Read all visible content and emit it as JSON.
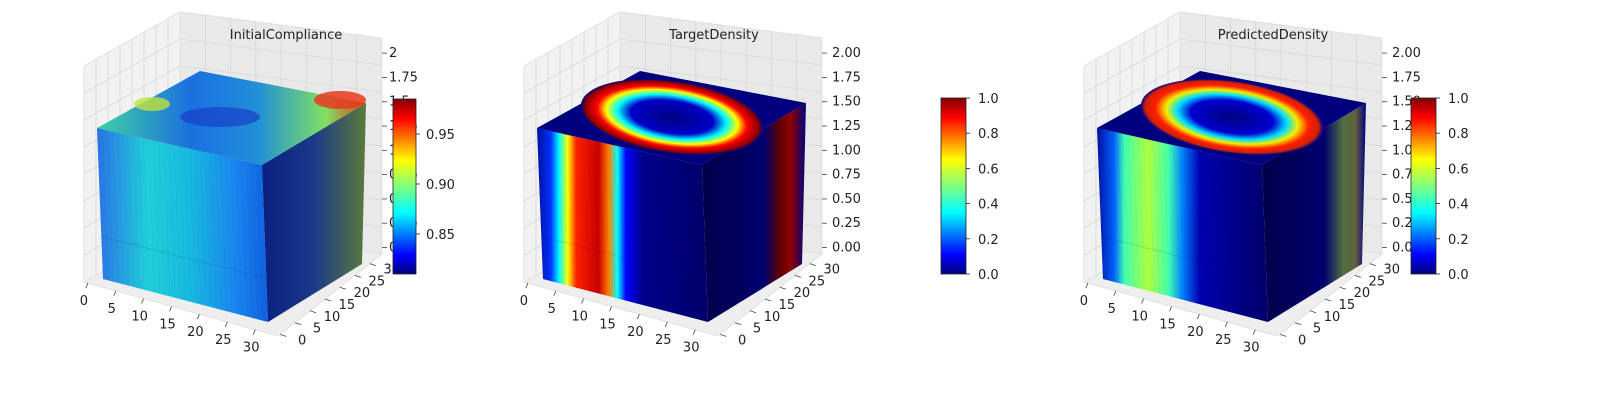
{
  "chart_data": [
    {
      "type": "surface3d",
      "title": "InitialCompliance",
      "colormap": "jet",
      "x_ticks": [
        "0",
        "5",
        "10",
        "15",
        "20",
        "25",
        "30"
      ],
      "y_ticks": [
        "0",
        "5",
        "10",
        "15",
        "20",
        "25",
        "30"
      ],
      "z_ticks": [
        "0",
        "0.25",
        "0.5",
        "0.75",
        "1",
        "1.25",
        "1.5",
        "1.75",
        "2"
      ],
      "xlim": [
        0,
        32
      ],
      "ylim": [
        0,
        32
      ],
      "zlim": [
        0,
        2
      ],
      "colorbar": {
        "min": 0.81,
        "max": 0.985,
        "ticks": [
          "0.85",
          "0.90",
          "0.95"
        ],
        "tick_values": [
          0.85,
          0.9,
          0.95
        ]
      },
      "description_values": {
        "top_max": 0.97,
        "front_mean": 0.86,
        "side_mean": 0.83
      }
    },
    {
      "type": "surface3d",
      "title": "TargetDensity",
      "colormap": "jet",
      "x_ticks": [
        "0",
        "5",
        "10",
        "15",
        "20",
        "25",
        "30"
      ],
      "y_ticks": [
        "0",
        "5",
        "10",
        "15",
        "20",
        "25",
        "30"
      ],
      "z_ticks": [
        "0.00",
        "0.25",
        "0.50",
        "0.75",
        "1.00",
        "1.25",
        "1.50",
        "1.75",
        "2.00"
      ],
      "xlim": [
        0,
        32
      ],
      "ylim": [
        0,
        32
      ],
      "zlim": [
        0,
        2
      ],
      "colorbar": {
        "min": 0,
        "max": 1,
        "ticks": [
          "0.0",
          "0.2",
          "0.4",
          "0.6",
          "0.8",
          "1.0"
        ],
        "tick_values": [
          0,
          0.2,
          0.4,
          0.6,
          0.8,
          1.0
        ]
      }
    },
    {
      "type": "surface3d",
      "title": "PredictedDensity",
      "colormap": "jet",
      "x_ticks": [
        "0",
        "5",
        "10",
        "15",
        "20",
        "25",
        "30"
      ],
      "y_ticks": [
        "0",
        "5",
        "10",
        "15",
        "20",
        "25",
        "30"
      ],
      "z_ticks": [
        "0.00",
        "0.25",
        "0.50",
        "0.75",
        "1.00",
        "1.25",
        "1.50",
        "1.75",
        "2.00"
      ],
      "xlim": [
        0,
        32
      ],
      "ylim": [
        0,
        32
      ],
      "zlim": [
        0,
        2
      ],
      "colorbar": {
        "min": 0,
        "max": 1,
        "ticks": [
          "0.0",
          "0.2",
          "0.4",
          "0.6",
          "0.8",
          "1.0"
        ],
        "tick_values": [
          0,
          0.2,
          0.4,
          0.6,
          0.8,
          1.0
        ]
      }
    }
  ],
  "colors": {
    "pane": "#f2f2f2",
    "grid": "#d6d6d6",
    "axis": "#444444"
  }
}
